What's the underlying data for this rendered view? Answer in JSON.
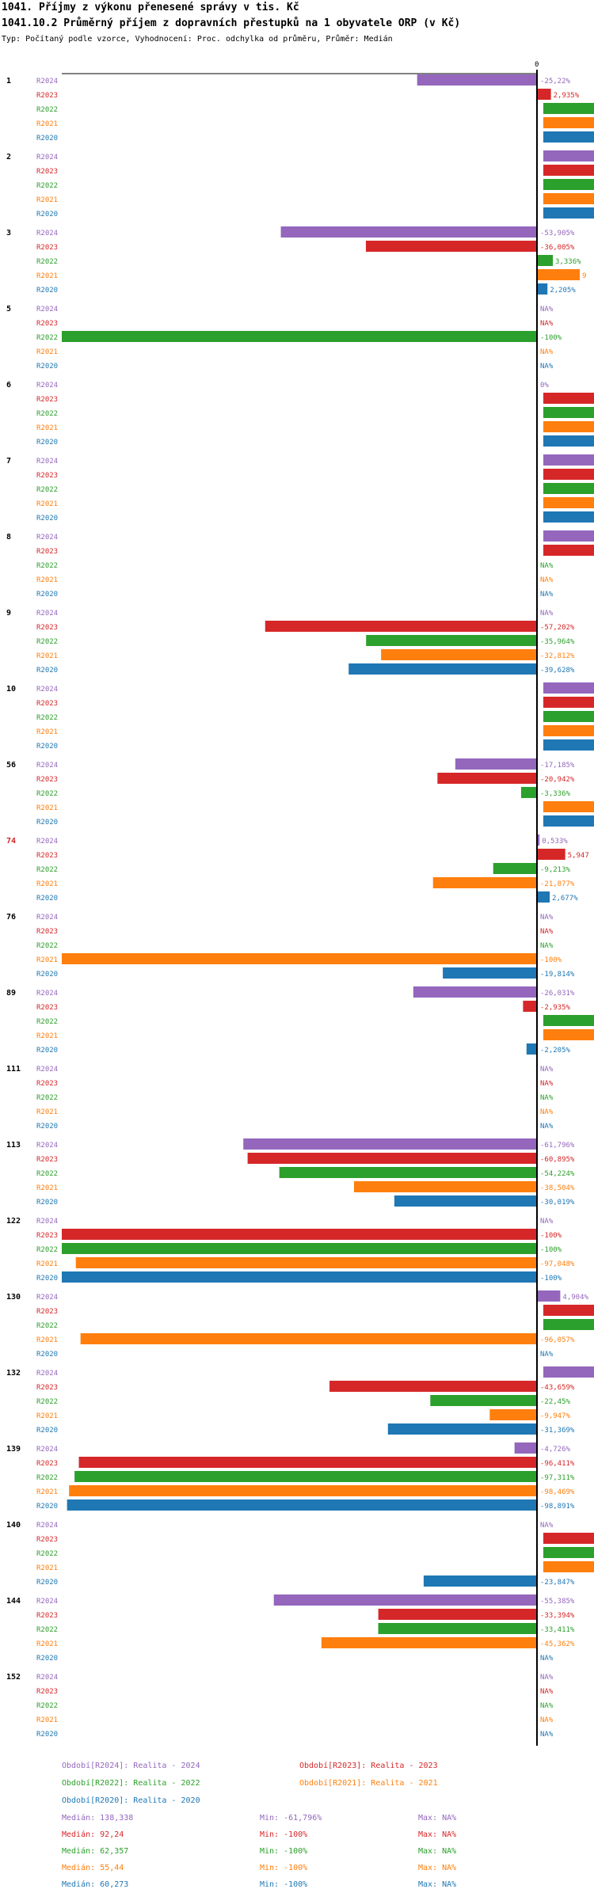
{
  "header": {
    "title": "1041. Příjmy z výkonu přenesené správy v tis. Kč",
    "subtitle": "1041.10.2 Průměrný příjem z dopravních přestupků na 1 obyvatele ORP (v Kč)",
    "info": "Typ: Počítaný podle vzorce, Vyhodnocení: Proc. odchylka od průměru, Průměr: Medián"
  },
  "colors": {
    "R2024": "#9467bd",
    "R2023": "#d62728",
    "R2022": "#2ca02c",
    "R2021": "#ff7f0e",
    "R2020": "#1f77b4",
    "highlight_group": "#d62728",
    "axis": "#000000"
  },
  "chart_data": {
    "type": "bar",
    "orientation": "horizontal",
    "zero_label": "0",
    "series_order": [
      "R2024",
      "R2023",
      "R2022",
      "R2021",
      "R2020"
    ],
    "groups": [
      {
        "id": "1",
        "highlight": false,
        "values": [
          -25.22,
          2.935,
          null,
          null,
          null
        ],
        "labels": [
          "-25,22%",
          "2,935%",
          "",
          "",
          ""
        ]
      },
      {
        "id": "2",
        "highlight": false,
        "values": [
          null,
          null,
          null,
          null,
          null
        ],
        "labels": [
          "",
          "",
          "",
          "",
          ""
        ]
      },
      {
        "id": "3",
        "highlight": false,
        "values": [
          -53.905,
          -36.005,
          3.336,
          9,
          2.205
        ],
        "labels": [
          "-53,905%",
          "-36,005%",
          "3,336%",
          "9",
          "2,205%"
        ]
      },
      {
        "id": "5",
        "highlight": false,
        "values": [
          null,
          null,
          -100,
          null,
          null
        ],
        "labels": [
          "NA%",
          "NA%",
          "-100%",
          "NA%",
          "NA%"
        ]
      },
      {
        "id": "6",
        "highlight": false,
        "values": [
          0,
          null,
          null,
          null,
          null
        ],
        "labels": [
          "0%",
          "",
          "",
          "",
          ""
        ]
      },
      {
        "id": "7",
        "highlight": false,
        "values": [
          null,
          null,
          null,
          null,
          null
        ],
        "labels": [
          "",
          "",
          "",
          "",
          ""
        ]
      },
      {
        "id": "8",
        "highlight": false,
        "values": [
          null,
          null,
          null,
          null,
          null
        ],
        "labels": [
          "",
          "",
          "NA%",
          "NA%",
          "NA%"
        ]
      },
      {
        "id": "9",
        "highlight": false,
        "values": [
          null,
          -57.202,
          -35.964,
          -32.812,
          -39.628
        ],
        "labels": [
          "NA%",
          "-57,202%",
          "-35,964%",
          "-32,812%",
          "-39,628%"
        ]
      },
      {
        "id": "10",
        "highlight": false,
        "values": [
          null,
          null,
          null,
          null,
          null
        ],
        "labels": [
          "",
          "",
          "",
          "",
          ""
        ]
      },
      {
        "id": "56",
        "highlight": false,
        "values": [
          -17.185,
          -20.942,
          -3.336,
          null,
          null
        ],
        "labels": [
          "-17,185%",
          "-20,942%",
          "-3,336%",
          "",
          ""
        ]
      },
      {
        "id": "74",
        "highlight": true,
        "values": [
          0.533,
          5.947,
          -9.213,
          -21.877,
          2.677
        ],
        "labels": [
          "0,533%",
          "5,947",
          "-9,213%",
          "-21,877%",
          "2,677%"
        ]
      },
      {
        "id": "76",
        "highlight": false,
        "values": [
          null,
          null,
          null,
          -100,
          -19.814
        ],
        "labels": [
          "NA%",
          "NA%",
          "NA%",
          "-100%",
          "-19,814%"
        ]
      },
      {
        "id": "89",
        "highlight": false,
        "values": [
          -26.031,
          -2.935,
          null,
          null,
          -2.205
        ],
        "labels": [
          "-26,031%",
          "-2,935%",
          "",
          "",
          "-2,205%"
        ]
      },
      {
        "id": "111",
        "highlight": false,
        "values": [
          null,
          null,
          null,
          null,
          null
        ],
        "labels": [
          "NA%",
          "NA%",
          "NA%",
          "NA%",
          "NA%"
        ]
      },
      {
        "id": "113",
        "highlight": false,
        "values": [
          -61.796,
          -60.895,
          -54.224,
          -38.504,
          -30.019
        ],
        "labels": [
          "-61,796%",
          "-60,895%",
          "-54,224%",
          "-38,504%",
          "-30,019%"
        ]
      },
      {
        "id": "122",
        "highlight": false,
        "values": [
          null,
          -100,
          -100,
          -97.048,
          -100
        ],
        "labels": [
          "NA%",
          "-100%",
          "-100%",
          "-97,048%",
          "-100%"
        ]
      },
      {
        "id": "130",
        "highlight": false,
        "values": [
          4.904,
          null,
          null,
          -96.057,
          null
        ],
        "labels": [
          "4,904%",
          "",
          "",
          "-96,057%",
          "NA%"
        ]
      },
      {
        "id": "132",
        "highlight": false,
        "values": [
          null,
          -43.659,
          -22.45,
          -9.947,
          -31.369
        ],
        "labels": [
          "",
          "-43,659%",
          "-22,45%",
          "-9,947%",
          "-31,369%"
        ]
      },
      {
        "id": "139",
        "highlight": false,
        "values": [
          -4.726,
          -96.411,
          -97.311,
          -98.469,
          -98.891
        ],
        "labels": [
          "-4,726%",
          "-96,411%",
          "-97,311%",
          "-98,469%",
          "-98,891%"
        ]
      },
      {
        "id": "140",
        "highlight": false,
        "values": [
          null,
          null,
          null,
          null,
          -23.847
        ],
        "labels": [
          "NA%",
          "",
          "",
          "",
          "-23,847%"
        ]
      },
      {
        "id": "144",
        "highlight": false,
        "values": [
          -55.385,
          -33.394,
          -33.411,
          -45.362,
          null
        ],
        "labels": [
          "-55,385%",
          "-33,394%",
          "-33,411%",
          "-45,362%",
          "NA%"
        ]
      },
      {
        "id": "152",
        "highlight": false,
        "values": [
          null,
          null,
          null,
          null,
          null
        ],
        "labels": [
          "NA%",
          "NA%",
          "NA%",
          "NA%",
          "NA%"
        ]
      }
    ]
  },
  "legend": {
    "periods": [
      {
        "series": "R2024",
        "text": "Období[R2024]: Realita - 2024"
      },
      {
        "series": "R2023",
        "text": "Období[R2023]: Realita - 2023"
      },
      {
        "series": "R2022",
        "text": "Období[R2022]: Realita - 2022"
      },
      {
        "series": "R2021",
        "text": "Období[R2021]: Realita - 2021"
      },
      {
        "series": "R2020",
        "text": "Období[R2020]: Realita - 2020"
      }
    ],
    "stats": [
      {
        "series": "R2024",
        "median": "Medián: 138,338",
        "min": "Min: -61,796%",
        "max": "Max: NA%"
      },
      {
        "series": "R2023",
        "median": "Medián: 92,24",
        "min": "Min: -100%",
        "max": "Max: NA%"
      },
      {
        "series": "R2022",
        "median": "Medián: 62,357",
        "min": "Min: -100%",
        "max": "Max: NA%"
      },
      {
        "series": "R2021",
        "median": "Medián: 55,44",
        "min": "Min: -100%",
        "max": "Max: NA%"
      },
      {
        "series": "R2020",
        "median": "Medián: 60,273",
        "min": "Min: -100%",
        "max": "Max: NA%"
      }
    ]
  }
}
